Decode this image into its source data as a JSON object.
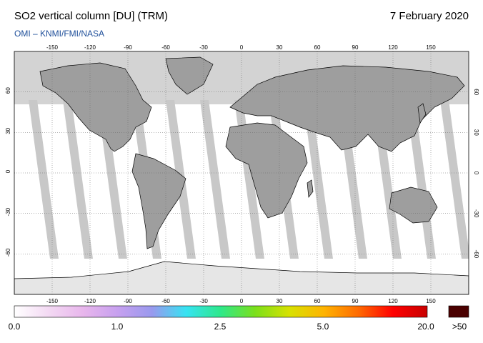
{
  "title": "SO2 vertical column [DU] (TRM)",
  "date": "7 February 2020",
  "credit": "OMI  –  KNMI/FMI/NASA",
  "colors": {
    "polar_night": "#d3d3d3",
    "land": "#9e9e9e",
    "swath_gap": "#c8c8c8",
    "data": "#ffffff",
    "coast": "#000000",
    "grid": "#666666",
    "overflow": "#4a0000"
  },
  "map": {
    "projection": "equirectangular",
    "lon_ticks": [
      -150,
      -120,
      -90,
      -60,
      -30,
      0,
      30,
      60,
      90,
      120,
      150
    ],
    "lat_ticks": [
      60,
      30,
      0,
      -30,
      -60
    ]
  },
  "colorbar": {
    "stops": [
      "#ffffff",
      "#f3d9f3",
      "#e8b6ec",
      "#c7a0ef",
      "#9999ee",
      "#36e3f2",
      "#2ee88a",
      "#7be01b",
      "#d8e100",
      "#ffb300",
      "#ff6a00",
      "#ff0000",
      "#c80000"
    ],
    "labels": [
      "0.0",
      "1.0",
      "2.5",
      "5.0",
      "20.0",
      ">50"
    ]
  }
}
